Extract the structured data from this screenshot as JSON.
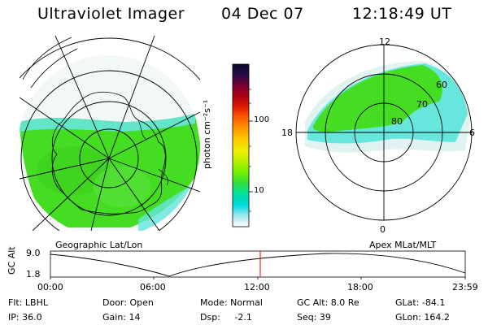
{
  "header": {
    "title": "Ultraviolet Imager",
    "date": "04 Dec 07",
    "time": "12:18:49 UT"
  },
  "colorbar": {
    "unit_label": "photon cm⁻²s⁻¹",
    "ticks": [
      "100",
      "10"
    ],
    "colors": [
      "#0b0b2a",
      "#2a0a4a",
      "#7a0030",
      "#b00010",
      "#e02000",
      "#ff6000",
      "#ff9a00",
      "#ffcc00",
      "#eef000",
      "#b8f000",
      "#70f000",
      "#30e040",
      "#00e0a0",
      "#00d8e0",
      "#a0e8f0",
      "#ffffff"
    ]
  },
  "left_map": {
    "caption": "Geographic Lat/Lon",
    "emission_color": "#44dd22",
    "edge_color": "#66e6dc"
  },
  "right_map": {
    "caption": "Apex MLat/MLT",
    "mlt_labels": [
      "12",
      "18",
      "6",
      "0"
    ],
    "lat_labels": [
      "60",
      "70",
      "80"
    ]
  },
  "altitude_plot": {
    "ylabel": "GC Alt",
    "ymax_label": "9.0",
    "ymin_label": "1.8",
    "time_ticks": [
      "00:00",
      "06:00",
      "12:00",
      "18:00",
      "23:59"
    ],
    "current_time_color": "#ff0000"
  },
  "info": {
    "flt": "Flt: LBHL",
    "ip": "IP: 36.0",
    "door": "Door: Open",
    "gain": "Gain: 14",
    "mode": "Mode: Normal",
    "dsp": "Dsp:     -2.1",
    "gc_alt": "GC Alt: 8.0 Re",
    "seq": "Seq: 39",
    "glat": "GLat: -84.1",
    "glon": "GLon: 164.2"
  }
}
